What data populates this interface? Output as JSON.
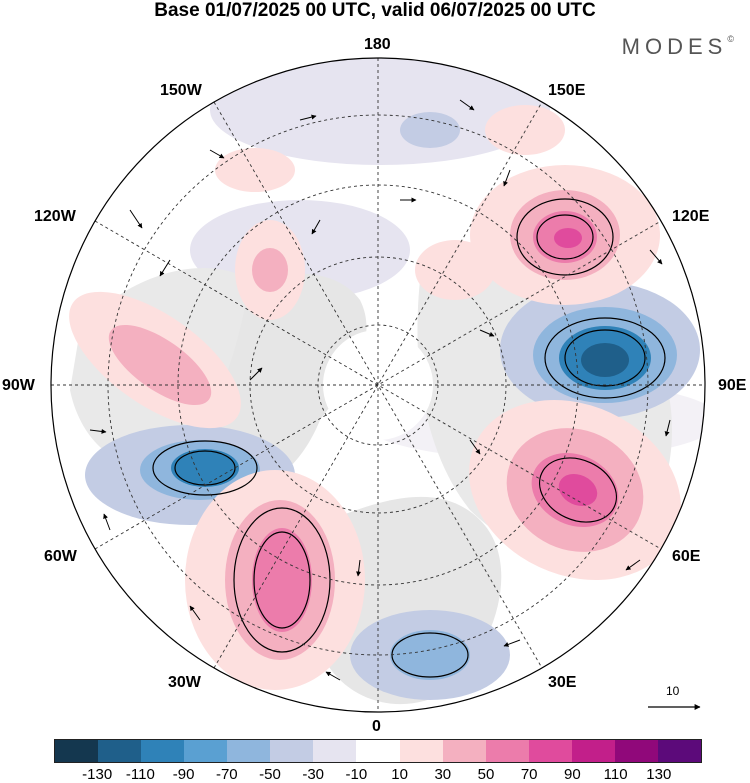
{
  "header": {
    "title": "Base 01/07/2025 00 UTC, valid 06/07/2025 00 UTC",
    "brand": "MODES",
    "brand_mark": "©"
  },
  "map": {
    "projection": "north polar stereographic",
    "longitude_labels": {
      "top": "180",
      "bottom": "0",
      "left": "90W",
      "right": "90E",
      "upper_left_1": "150W",
      "upper_left_2": "120W",
      "lower_left_1": "60W",
      "lower_left_2": "30W",
      "upper_right_1": "150E",
      "upper_right_2": "120E",
      "lower_right_1": "60E",
      "lower_right_2": "30E"
    },
    "reference_vector": "10",
    "colors": {
      "neg_strong": "#1f6aa6",
      "neg_mid": "#6e9ed0",
      "neg_light": "#c5cfe6",
      "neutral": "#ffffff",
      "pos_light": "#f6d3d8",
      "pos_mid": "#ee98b4",
      "pos_strong": "#dc4f9c",
      "land": "#e6e6e6"
    }
  },
  "colorbar": {
    "colors": [
      "#14374f",
      "#1f5f8a",
      "#2f82b8",
      "#5aa0d2",
      "#8fb6dd",
      "#c3cce4",
      "#e6e4f0",
      "#ffffff",
      "#fde0df",
      "#f4b0c0",
      "#ec7cab",
      "#e04b9d",
      "#c21f8a",
      "#90087a",
      "#5c0a7a"
    ],
    "tick_labels": [
      "-130",
      "-110",
      "-90",
      "-70",
      "-50",
      "-30",
      "-10",
      "10",
      "30",
      "50",
      "70",
      "90",
      "110",
      "130"
    ]
  }
}
